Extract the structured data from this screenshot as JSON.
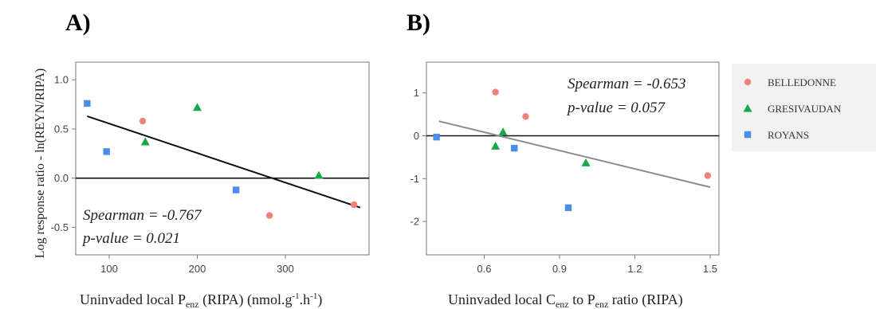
{
  "figure": {
    "y_axis_label": "Log response ratio - ln(REYN/RIPA)"
  },
  "chart_data": [
    {
      "type": "scatter",
      "panel": "A)",
      "xlabel": "Uninvaded local Penz (RIPA) (nmol.g-1.h-1)",
      "xlabel_parts": {
        "a": "Uninvaded local P",
        "b": "enz",
        "c": " (RIPA) (nmol.g",
        "d": "-1",
        "e": ".h",
        "f": "-1",
        "g": ")"
      },
      "xlim": [
        62,
        395
      ],
      "ylim": [
        -0.78,
        1.18
      ],
      "xticks": [
        100,
        200,
        300
      ],
      "xtick_labels": [
        "100",
        "200",
        "300"
      ],
      "yticks": [
        -0.5,
        0.0,
        0.5,
        1.0
      ],
      "ytick_labels": [
        "-0.5",
        "0.0",
        "0.5",
        "1.0"
      ],
      "reference_line": 0,
      "trend": {
        "x": [
          75,
          385
        ],
        "y": [
          0.63,
          -0.3
        ],
        "color": "#111111"
      },
      "series": [
        {
          "name": "BELLEDONNE",
          "marker": "circle",
          "color": "#f08078",
          "points": [
            {
              "x": 138,
              "y": 0.58
            },
            {
              "x": 282,
              "y": -0.38
            },
            {
              "x": 378,
              "y": -0.27
            }
          ]
        },
        {
          "name": "GRESIVAUDAN",
          "marker": "triangle",
          "color": "#1aa64a",
          "points": [
            {
              "x": 141,
              "y": 0.37
            },
            {
              "x": 200,
              "y": 0.72
            },
            {
              "x": 338,
              "y": 0.03
            }
          ]
        },
        {
          "name": "ROYANS",
          "marker": "square",
          "color": "#4a8ee8",
          "points": [
            {
              "x": 75,
              "y": 0.76
            },
            {
              "x": 97,
              "y": 0.27
            },
            {
              "x": 244,
              "y": -0.12
            }
          ]
        }
      ],
      "stats": {
        "spearman": "Spearman =  -0.767",
        "pvalue": "p-value =  0.021"
      }
    },
    {
      "type": "scatter",
      "panel": "B)",
      "xlabel": "Uninvaded local Cenz to Penz ratio (RIPA)",
      "xlabel_parts": {
        "a": "Uninvaded local C",
        "b": "enz",
        "c": " to P",
        "d": "enz",
        "e": " ratio (RIPA)"
      },
      "xlim": [
        0.37,
        1.535
      ],
      "ylim": [
        -2.78,
        1.72
      ],
      "xticks": [
        0.6,
        0.9,
        1.2,
        1.5
      ],
      "xtick_labels": [
        "0.6",
        "0.9",
        "1.2",
        "1.5"
      ],
      "yticks": [
        -2,
        -1,
        0,
        1
      ],
      "ytick_labels": [
        "-2",
        "-1",
        "0",
        "1"
      ],
      "reference_line": 0,
      "trend": {
        "x": [
          0.42,
          1.5
        ],
        "y": [
          0.34,
          -1.2
        ],
        "color": "#8c8c8c"
      },
      "series": [
        {
          "name": "BELLEDONNE",
          "marker": "circle",
          "color": "#f08078",
          "points": [
            {
              "x": 0.645,
              "y": 1.02
            },
            {
              "x": 0.765,
              "y": 0.45
            },
            {
              "x": 1.49,
              "y": -0.93
            }
          ]
        },
        {
          "name": "GRESIVAUDAN",
          "marker": "triangle",
          "color": "#1aa64a",
          "points": [
            {
              "x": 0.645,
              "y": -0.24
            },
            {
              "x": 0.675,
              "y": 0.09
            },
            {
              "x": 1.005,
              "y": -0.63
            }
          ]
        },
        {
          "name": "ROYANS",
          "marker": "square",
          "color": "#4a8ee8",
          "points": [
            {
              "x": 0.41,
              "y": -0.03
            },
            {
              "x": 0.72,
              "y": -0.29
            },
            {
              "x": 0.935,
              "y": -1.68
            }
          ]
        }
      ],
      "stats": {
        "spearman": "Spearman =  -0.653",
        "pvalue": "p-value =  0.057"
      }
    }
  ],
  "legend": {
    "placement": "right",
    "items": [
      {
        "name": "BELLEDONNE",
        "marker": "circle",
        "color": "#f08078"
      },
      {
        "name": "GRESIVAUDAN",
        "marker": "triangle",
        "color": "#1aa64a"
      },
      {
        "name": "ROYANS",
        "marker": "square",
        "color": "#4a8ee8"
      }
    ]
  }
}
